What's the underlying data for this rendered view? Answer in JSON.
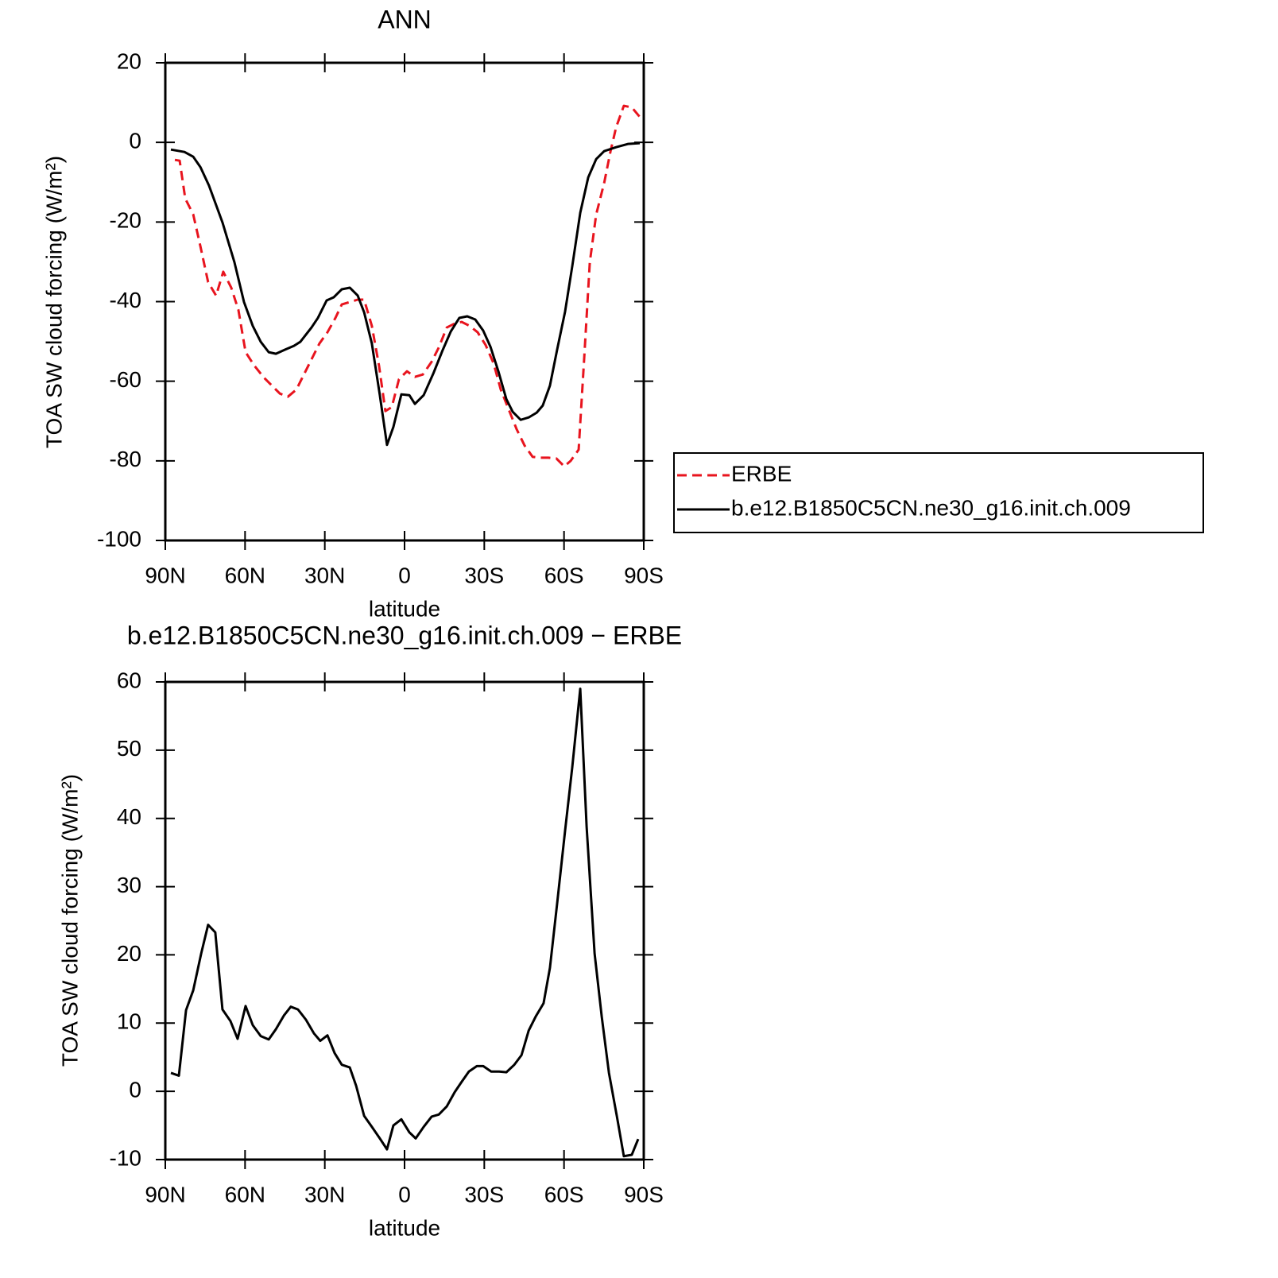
{
  "chart_data": [
    {
      "type": "line",
      "title": "ANN",
      "ylabel": "TOA SW cloud forcing (W/m²)",
      "xlabel": "latitude",
      "xlim": [
        90,
        -90
      ],
      "xticks": [
        {
          "value": 90,
          "label": "90N"
        },
        {
          "value": 60,
          "label": "60N"
        },
        {
          "value": 30,
          "label": "30N"
        },
        0,
        {
          "value": -30,
          "label": "30S"
        },
        {
          "value": -60,
          "label": "60S"
        },
        {
          "value": -90,
          "label": "90S"
        }
      ],
      "ylim": [
        -100,
        20
      ],
      "yticks": [
        -100,
        -80,
        -60,
        -40,
        -20,
        0,
        20
      ],
      "legend": "right",
      "series": [
        {
          "name": "ERBE",
          "color": "#e8141e",
          "linestyle": "dashed",
          "x": [
            86.4,
            84.6,
            82.5,
            79.5,
            76.8,
            73.9,
            70.9,
            68.2,
            65.2,
            62.5,
            59.8,
            56.5,
            52.9,
            49.9,
            46.9,
            43.9,
            40.7,
            37.7,
            34.7,
            32.0,
            29.0,
            26.0,
            23.6,
            20.6,
            17.6,
            15.2,
            12.3,
            9.6,
            7.2,
            4.8,
            2.1,
            -0.9,
            -3.9,
            -6.9,
            -10.2,
            -12.9,
            -15.9,
            -18.9,
            -21.5,
            -24.5,
            -27.5,
            -30.5,
            -33.5,
            -36.2,
            -39.2,
            -42.2,
            -45.2,
            -48.2,
            -51.1,
            -54.1,
            -57.1,
            -60.1,
            -62.5,
            -65.5,
            -67.6,
            -69.7,
            -72.1,
            -75.1,
            -77.5,
            -79.6,
            -82.5,
            -85.5,
            -88.5
          ],
          "values": [
            -4.4,
            -4.6,
            -14.1,
            -18.1,
            -26.1,
            -35.1,
            -38.5,
            -32.5,
            -36.5,
            -42.1,
            -52.7,
            -56.1,
            -59.1,
            -61.1,
            -63.1,
            -63.9,
            -62.1,
            -58.1,
            -54.1,
            -50.5,
            -47.7,
            -44.1,
            -40.7,
            -40.1,
            -39.5,
            -39.5,
            -46.1,
            -56.1,
            -67.5,
            -66.5,
            -59.5,
            -57.5,
            -58.9,
            -58.3,
            -55.1,
            -51.5,
            -46.5,
            -45.5,
            -45.1,
            -46.1,
            -47.7,
            -50.9,
            -55.5,
            -62.1,
            -67.1,
            -72.1,
            -76.2,
            -79.0,
            -79.2,
            -79.2,
            -79.4,
            -81.4,
            -80.0,
            -77.2,
            -54.1,
            -30.1,
            -18.1,
            -10.2,
            -2.2,
            3.8,
            9.2,
            8.8,
            6.4
          ]
        },
        {
          "name": "b.e12.B1850C5CN.ne30_g16.init.ch.009",
          "color": "#000000",
          "linestyle": "solid",
          "x": [
            87.9,
            82.8,
            79.5,
            76.8,
            73.6,
            68.5,
            64.0,
            60.4,
            57.1,
            54.1,
            51.1,
            48.4,
            45.1,
            41.6,
            39.2,
            35.0,
            32.6,
            29.3,
            26.6,
            23.6,
            20.6,
            17.6,
            15.2,
            12.3,
            9.3,
            6.6,
            4.2,
            1.2,
            -1.8,
            -3.9,
            -7.2,
            -10.8,
            -14.4,
            -17.4,
            -20.6,
            -23.6,
            -26.6,
            -29.6,
            -32.3,
            -35.3,
            -38.3,
            -40.7,
            -43.7,
            -46.7,
            -49.7,
            -52.0,
            -54.7,
            -57.4,
            -60.4,
            -63.1,
            -66.1,
            -69.1,
            -72.1,
            -75.1,
            -79.6,
            -84.0,
            -88.5
          ],
          "values": [
            -1.8,
            -2.4,
            -3.6,
            -6.2,
            -10.8,
            -20.1,
            -30.1,
            -40.1,
            -46.1,
            -50.1,
            -52.7,
            -53.1,
            -52.1,
            -51.1,
            -50.1,
            -46.5,
            -44.1,
            -39.7,
            -38.9,
            -36.9,
            -36.5,
            -38.5,
            -42.7,
            -50.5,
            -63.5,
            -76.0,
            -71.5,
            -63.3,
            -63.5,
            -65.7,
            -63.5,
            -58.1,
            -52.1,
            -47.5,
            -44.1,
            -43.7,
            -44.5,
            -47.3,
            -51.3,
            -57.5,
            -64.5,
            -67.7,
            -69.7,
            -69.1,
            -67.9,
            -66.1,
            -61.1,
            -52.1,
            -42.5,
            -31.1,
            -17.7,
            -8.8,
            -4.2,
            -2.2,
            -1.2,
            -0.4,
            -0.2
          ]
        }
      ]
    },
    {
      "type": "line",
      "title": "b.e12.B1850C5CN.ne30_g16.init.ch.009 − ERBE",
      "ylabel": "TOA SW cloud forcing (W/m²)",
      "xlabel": "latitude",
      "xlim": [
        90,
        -90
      ],
      "xticks": [
        {
          "value": 90,
          "label": "90N"
        },
        {
          "value": 60,
          "label": "60N"
        },
        {
          "value": 30,
          "label": "30N"
        },
        0,
        {
          "value": -30,
          "label": "30S"
        },
        {
          "value": -60,
          "label": "60S"
        },
        {
          "value": -90,
          "label": "90S"
        }
      ],
      "ylim": [
        -10,
        60
      ],
      "yticks": [
        -10,
        0,
        10,
        20,
        30,
        40,
        50,
        60
      ],
      "series": [
        {
          "color": "#000000",
          "linestyle": "solid",
          "x": [
            87.9,
            84.9,
            82.2,
            79.5,
            76.5,
            73.9,
            71.2,
            68.5,
            65.5,
            62.8,
            59.8,
            57.1,
            54.1,
            51.1,
            48.4,
            45.4,
            42.8,
            40.1,
            37.1,
            34.1,
            31.7,
            29.0,
            26.3,
            23.6,
            20.6,
            18.2,
            15.2,
            12.3,
            9.3,
            6.6,
            4.2,
            1.2,
            -1.8,
            -4.2,
            -7.2,
            -10.2,
            -12.9,
            -15.9,
            -18.9,
            -21.5,
            -24.2,
            -27.2,
            -29.6,
            -32.6,
            -35.6,
            -38.3,
            -41.3,
            -44.0,
            -46.7,
            -49.4,
            -52.3,
            -54.7,
            -57.4,
            -60.4,
            -63.1,
            -66.1,
            -68.5,
            -71.5,
            -74.2,
            -76.9,
            -79.9,
            -82.5,
            -85.5,
            -87.9
          ],
          "values": [
            2.7,
            2.3,
            11.9,
            14.8,
            20.2,
            24.4,
            23.3,
            12.0,
            10.3,
            7.7,
            12.5,
            9.7,
            8.1,
            7.6,
            9.1,
            11.1,
            12.4,
            12.0,
            10.5,
            8.5,
            7.4,
            8.2,
            5.6,
            3.9,
            3.5,
            0.8,
            -3.6,
            -5.2,
            -6.9,
            -8.5,
            -5.0,
            -4.1,
            -6.0,
            -6.9,
            -5.2,
            -3.7,
            -3.4,
            -2.2,
            -0.1,
            1.4,
            2.9,
            3.7,
            3.7,
            2.9,
            2.9,
            2.8,
            3.9,
            5.3,
            8.9,
            11.0,
            12.9,
            18.1,
            27.5,
            38.2,
            47.5,
            59.0,
            38.8,
            20.2,
            10.9,
            2.7,
            -3.7,
            -9.5,
            -9.3,
            -7.0
          ]
        }
      ]
    }
  ]
}
